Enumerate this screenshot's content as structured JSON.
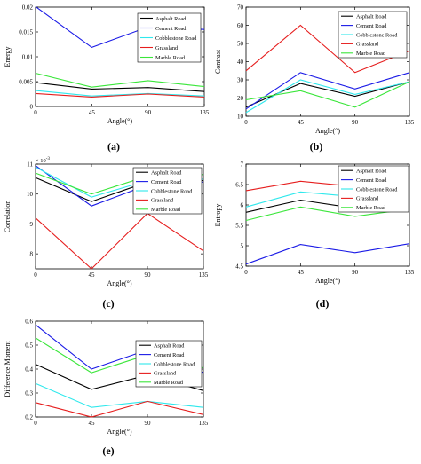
{
  "figure": {
    "legend_entries": [
      "Asphalt Road",
      "Cement Road",
      "Cobblestone Road",
      "Grassland",
      "Marble Road"
    ],
    "colors": {
      "Asphalt Road": "#000000",
      "Cement Road": "#1a1ae6",
      "Cobblestone Road": "#2fe8ec",
      "Grassland": "#e61e1e",
      "Marble Road": "#3ae63a"
    }
  },
  "chart_data": [
    {
      "id": "a",
      "type": "line",
      "caption": "(a)",
      "xlabel": "Angle(°)",
      "ylabel": "Energy",
      "x": [
        0,
        45,
        90,
        135
      ],
      "xticks": [
        "0",
        "45",
        "90",
        "135"
      ],
      "ylim": [
        0,
        0.02
      ],
      "yticks": [
        "0",
        "0.005",
        "0.01",
        "0.015",
        "0.02"
      ],
      "ytick_values": [
        0,
        0.005,
        0.01,
        0.015,
        0.02
      ],
      "multiplier": "",
      "legend_position": "top-right",
      "grid": false,
      "series": [
        {
          "name": "Asphalt Road",
          "values": [
            0.0048,
            0.0035,
            0.0038,
            0.003
          ]
        },
        {
          "name": "Cement Road",
          "values": [
            0.0201,
            0.0119,
            0.016,
            0.0155
          ]
        },
        {
          "name": "Cobblestone Road",
          "values": [
            0.0032,
            0.0021,
            0.0026,
            0.0021
          ]
        },
        {
          "name": "Grassland",
          "values": [
            0.0026,
            0.0019,
            0.0025,
            0.0019
          ]
        },
        {
          "name": "Marble Road",
          "values": [
            0.0067,
            0.0039,
            0.0052,
            0.004
          ]
        }
      ]
    },
    {
      "id": "b",
      "type": "line",
      "caption": "(b)",
      "xlabel": "Angle(°)",
      "ylabel": "Contrast",
      "x": [
        0,
        45,
        90,
        135
      ],
      "xticks": [
        "0",
        "45",
        "90",
        "135"
      ],
      "ylim": [
        10,
        70
      ],
      "yticks": [
        "10",
        "20",
        "30",
        "40",
        "50",
        "60",
        "70"
      ],
      "ytick_values": [
        10,
        20,
        30,
        40,
        50,
        60,
        70
      ],
      "multiplier": "",
      "legend_position": "top-right",
      "grid": false,
      "series": [
        {
          "name": "Asphalt Road",
          "values": [
            15,
            28,
            21,
            29
          ]
        },
        {
          "name": "Cement Road",
          "values": [
            14,
            34,
            25,
            34
          ]
        },
        {
          "name": "Cobblestone Road",
          "values": [
            12,
            30,
            22,
            29
          ]
        },
        {
          "name": "Grassland",
          "values": [
            35,
            60,
            34,
            46
          ]
        },
        {
          "name": "Marble Road",
          "values": [
            19,
            24,
            15,
            29
          ]
        }
      ]
    },
    {
      "id": "c",
      "type": "line",
      "caption": "(c)",
      "xlabel": "Angle(°)",
      "ylabel": "Correlation",
      "x": [
        0,
        45,
        90,
        135
      ],
      "xticks": [
        "0",
        "45",
        "90",
        "135"
      ],
      "ylim": [
        7.5,
        11
      ],
      "yticks": [
        "8",
        "9",
        "10",
        "11"
      ],
      "ytick_values": [
        8,
        9,
        10,
        11
      ],
      "multiplier": "× 10",
      "multiplier_exp": "-3",
      "legend_position": "top-right",
      "grid": false,
      "series": [
        {
          "name": "Asphalt Road",
          "values": [
            10.55,
            9.75,
            10.4,
            10.45
          ]
        },
        {
          "name": "Cement Road",
          "values": [
            10.95,
            9.6,
            10.3,
            10.4
          ]
        },
        {
          "name": "Cobblestone Road",
          "values": [
            10.9,
            9.9,
            10.45,
            10.5
          ]
        },
        {
          "name": "Grassland",
          "values": [
            9.2,
            7.5,
            9.35,
            8.1
          ]
        },
        {
          "name": "Marble Road",
          "values": [
            10.7,
            10.0,
            10.6,
            10.65
          ]
        }
      ]
    },
    {
      "id": "d",
      "type": "line",
      "caption": "(d)",
      "xlabel": "Angle(°)",
      "ylabel": "Entropy",
      "x": [
        0,
        45,
        90,
        135
      ],
      "xticks": [
        "0",
        "45",
        "90",
        "135"
      ],
      "ylim": [
        4.5,
        7
      ],
      "yticks": [
        "4.5",
        "5",
        "5.5",
        "6",
        "6.5",
        "7"
      ],
      "ytick_values": [
        4.5,
        5,
        5.5,
        6,
        6.5,
        7
      ],
      "multiplier": "",
      "legend_position": "top-right",
      "grid": false,
      "series": [
        {
          "name": "Asphalt Road",
          "values": [
            5.82,
            6.12,
            5.92,
            6.0
          ]
        },
        {
          "name": "Cement Road",
          "values": [
            4.55,
            5.03,
            4.83,
            5.05
          ]
        },
        {
          "name": "Cobblestone Road",
          "values": [
            5.95,
            6.32,
            6.2,
            6.3
          ]
        },
        {
          "name": "Grassland",
          "values": [
            6.35,
            6.58,
            6.45,
            6.5
          ]
        },
        {
          "name": "Marble Road",
          "values": [
            5.62,
            5.95,
            5.72,
            5.9
          ]
        }
      ]
    },
    {
      "id": "e",
      "type": "line",
      "caption": "(e)",
      "xlabel": "Angle(°)",
      "ylabel": "Difference Moment",
      "x": [
        0,
        45,
        90,
        135
      ],
      "xticks": [
        "0",
        "45",
        "90",
        "135"
      ],
      "ylim": [
        0.2,
        0.6
      ],
      "yticks": [
        "0.2",
        "0.3",
        "0.4",
        "0.5",
        "0.6"
      ],
      "ytick_values": [
        0.2,
        0.3,
        0.4,
        0.5,
        0.6
      ],
      "multiplier": "",
      "legend_position": "top-right",
      "grid": false,
      "series": [
        {
          "name": "Asphalt Road",
          "values": [
            0.42,
            0.315,
            0.375,
            0.31
          ]
        },
        {
          "name": "Cement Road",
          "values": [
            0.585,
            0.4,
            0.48,
            0.385
          ]
        },
        {
          "name": "Cobblestone Road",
          "values": [
            0.34,
            0.24,
            0.265,
            0.24
          ]
        },
        {
          "name": "Grassland",
          "values": [
            0.26,
            0.2,
            0.265,
            0.21
          ]
        },
        {
          "name": "Marble Road",
          "values": [
            0.53,
            0.385,
            0.46,
            0.405
          ]
        }
      ]
    }
  ]
}
